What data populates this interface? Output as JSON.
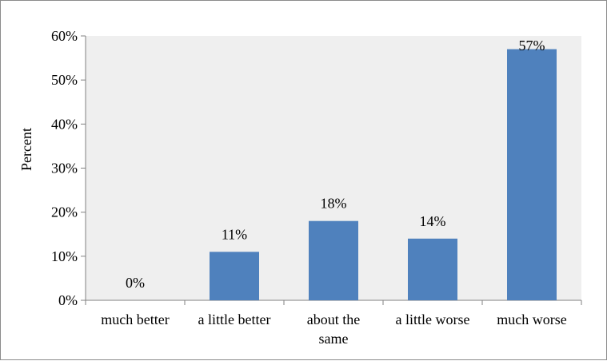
{
  "chart_data": {
    "type": "bar",
    "categories": [
      [
        "much better"
      ],
      [
        "a little better"
      ],
      [
        "about the",
        "same"
      ],
      [
        "a little worse"
      ],
      [
        "much worse"
      ]
    ],
    "values": [
      0,
      11,
      18,
      14,
      57
    ],
    "data_labels": [
      "0%",
      "11%",
      "18%",
      "14%",
      "57%"
    ],
    "ylabel": "Percent",
    "ylim": [
      0,
      60
    ],
    "yticks": [
      "0%",
      "10%",
      "20%",
      "30%",
      "40%",
      "50%",
      "60%"
    ],
    "plot_background": "#efefef",
    "bar_color": "#4f81bd",
    "grid": false
  }
}
